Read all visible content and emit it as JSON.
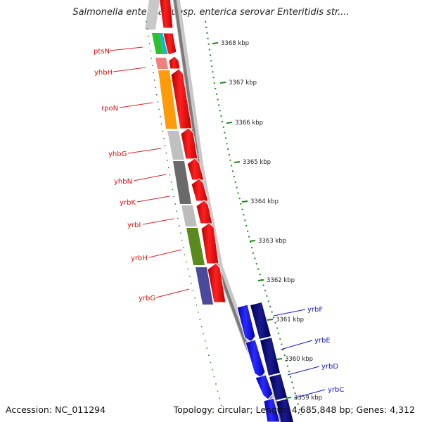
{
  "title": "Salmonella enterica subsp. enterica serovar Enteritidis str....",
  "footer": {
    "accession": "Accession: NC_011294",
    "topology": "Topology: circular; Length: 4,685,848 bp; Genes: 4,312"
  },
  "ticks": [
    "3368 kbp",
    "3367 kbp",
    "3366 kbp",
    "3365 kbp",
    "3364 kbp",
    "3363 kbp",
    "3362 kbp",
    "3361 kbp",
    "3360 kbp",
    "3359 kbp"
  ],
  "genes_reverse": [
    {
      "label": "ptsN",
      "color": "#e8251b"
    },
    {
      "label": "yhbH",
      "color": "#e8251b"
    },
    {
      "label": "rpoN",
      "color": "#e8251b"
    },
    {
      "label": "yhbG",
      "color": "#e8251b"
    },
    {
      "label": "yhbN",
      "color": "#e8251b"
    },
    {
      "label": "yrbK",
      "color": "#e8251b"
    },
    {
      "label": "yrbI",
      "color": "#e8251b"
    },
    {
      "label": "yrbH",
      "color": "#e8251b"
    },
    {
      "label": "yrbG",
      "color": "#e8251b"
    }
  ],
  "genes_forward": [
    {
      "label": "yrbF",
      "color": "#1a1ab0"
    },
    {
      "label": "yrbE",
      "color": "#1a1ab0"
    },
    {
      "label": "yrbD",
      "color": "#1a1ab0"
    },
    {
      "label": "yrbC",
      "color": "#1a1ab0"
    }
  ],
  "colors": {
    "reverse_strand": "#ff0000",
    "forward_strand": "#0000ff",
    "forward_cog": "#000080",
    "backbone": "#888888",
    "tick": "#1a8a1a"
  }
}
